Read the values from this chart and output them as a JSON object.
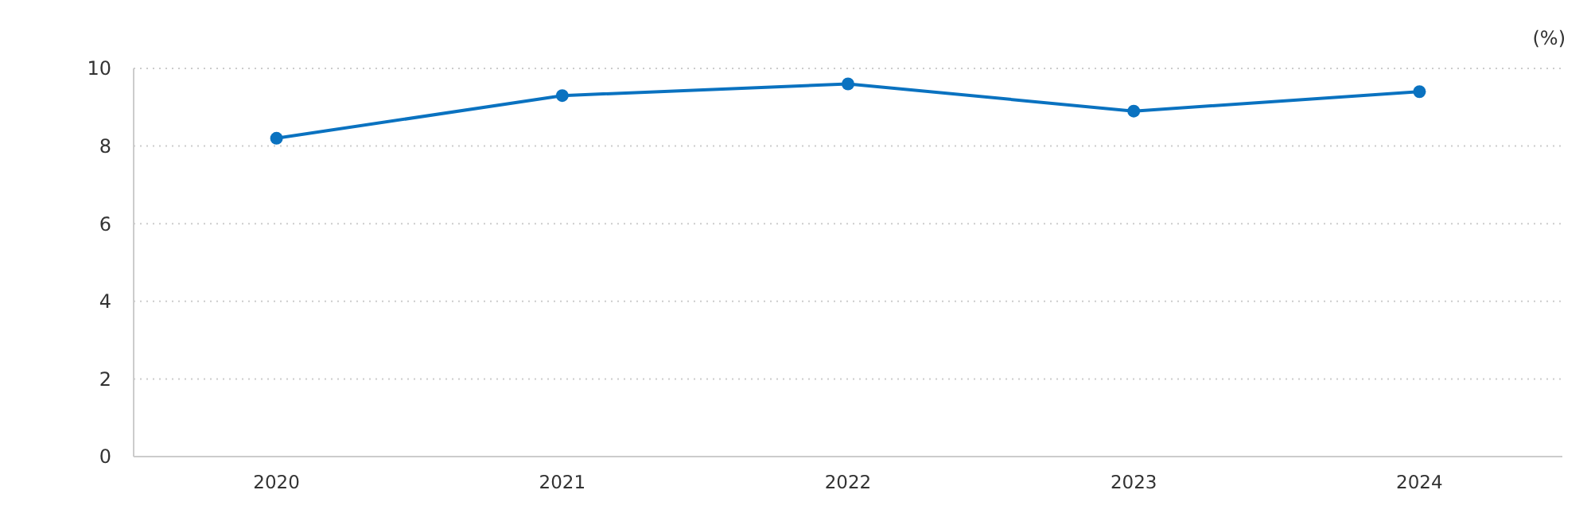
{
  "chart_data": {
    "type": "line",
    "ylabel": "(%)",
    "categories": [
      "2020",
      "2021",
      "2022",
      "2023",
      "2024"
    ],
    "series": [
      {
        "color": "#0a72c0",
        "values": [
          8.2,
          9.3,
          9.6,
          8.9,
          9.4
        ]
      }
    ],
    "ylim": [
      0,
      10
    ],
    "yticks": [
      0,
      2,
      4,
      6,
      8,
      10
    ],
    "grid": "y",
    "marker": "circle",
    "line_style": "solid"
  }
}
